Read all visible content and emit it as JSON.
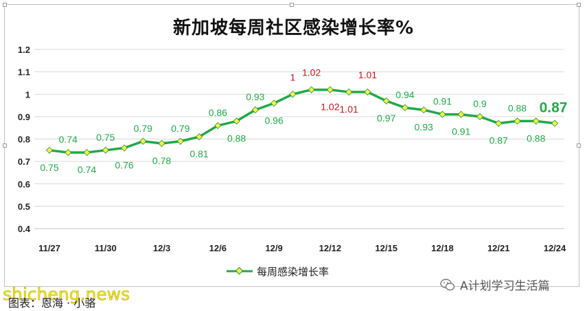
{
  "chart_data": {
    "type": "line",
    "title": "新加坡每周社区感染增长率%",
    "xlabel": "",
    "ylabel": "",
    "ylim": [
      0.4,
      1.2
    ],
    "yticks": [
      "0.4",
      "0.5",
      "0.6",
      "0.7",
      "0.8",
      "0.9",
      "1",
      "1.1",
      "1.2"
    ],
    "grid": true,
    "legend_position": "bottom",
    "x": [
      "11/27",
      "11/28",
      "11/29",
      "11/30",
      "12/1",
      "12/2",
      "12/3",
      "12/4",
      "12/5",
      "12/6",
      "12/7",
      "12/8",
      "12/9",
      "12/10",
      "12/11",
      "12/12",
      "12/13",
      "12/14",
      "12/15",
      "12/16",
      "12/17",
      "12/18",
      "12/19",
      "12/20",
      "12/21",
      "12/22",
      "12/23",
      "12/24"
    ],
    "xtick_labels": [
      "11/27",
      "11/30",
      "12/3",
      "12/6",
      "12/9",
      "12/12",
      "12/15",
      "12/18",
      "12/21",
      "12/24"
    ],
    "series": [
      {
        "name": "每周感染增长率",
        "color": "#22a84a",
        "marker_color": "#f5f542",
        "values": [
          0.75,
          0.74,
          0.74,
          0.75,
          0.76,
          0.79,
          0.78,
          0.79,
          0.81,
          0.86,
          0.88,
          0.93,
          0.96,
          1,
          1.02,
          1.02,
          1.01,
          1.01,
          0.97,
          0.94,
          0.93,
          0.91,
          0.91,
          0.9,
          0.87,
          0.88,
          0.88,
          0.87
        ],
        "labels": [
          "0.75",
          "0.74",
          "0.74",
          "0.75",
          "0.76",
          "0.79",
          "0.78",
          "0.79",
          "0.81",
          "0.86",
          "0.88",
          "0.93",
          "0.96",
          "1",
          "1.02",
          "1.02",
          "1.01",
          "1.01",
          "0.97",
          "0.94",
          "0.93",
          "0.91",
          "0.91",
          "0.9",
          "0.87",
          "0.88",
          "0.88",
          "0.87"
        ],
        "label_colors": {
          "default": "#22a84a",
          "peak": "#c0161d"
        }
      }
    ]
  },
  "caption": "图表：恩海 · 小骆",
  "watermark_left": "shicheng.news",
  "watermark_right": "A计划学习生活篇"
}
